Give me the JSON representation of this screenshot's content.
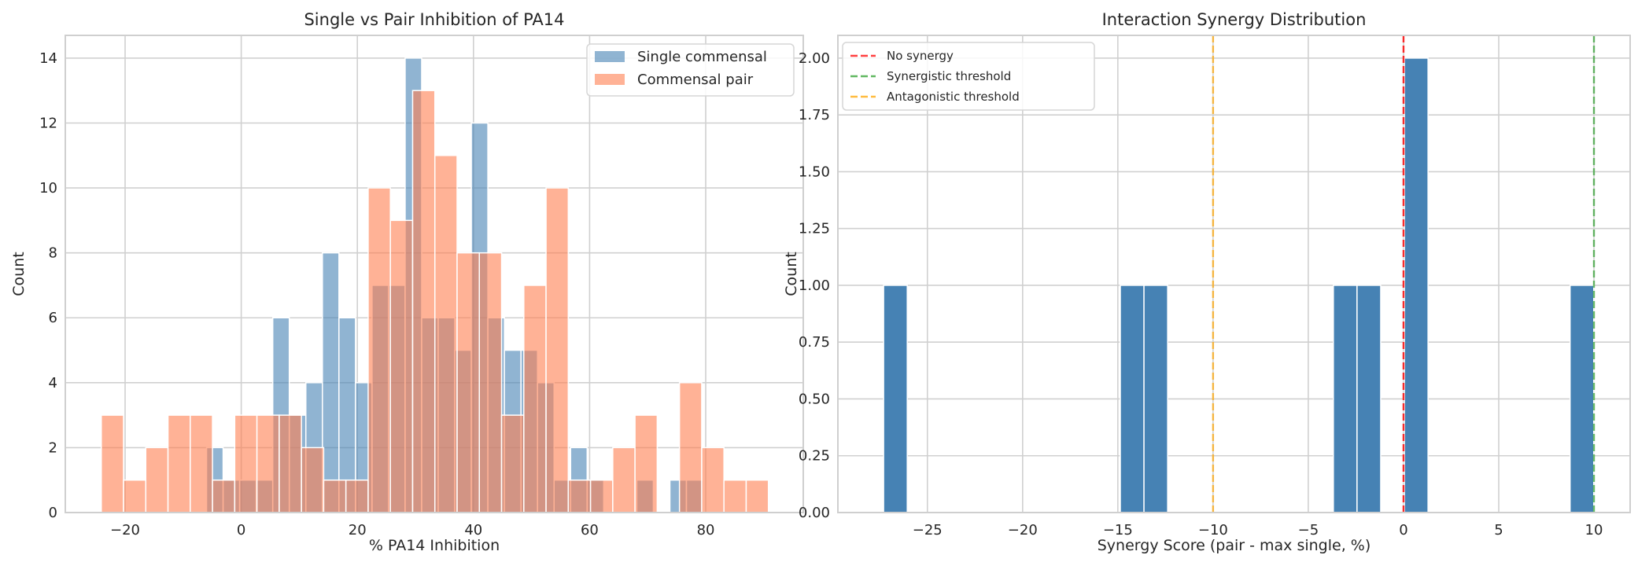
{
  "chart_data": [
    {
      "type": "bar",
      "subtype": "overlaid-histogram",
      "title": "Single vs Pair Inhibition of PA14",
      "xlabel": "% PA14 Inhibition",
      "ylabel": "Count",
      "xlim": [
        -30.3,
        96.8
      ],
      "ylim": [
        0,
        14.7
      ],
      "xticks": [
        -20,
        0,
        20,
        40,
        60,
        80
      ],
      "yticks": [
        0,
        2,
        4,
        6,
        8,
        10,
        12,
        14
      ],
      "grid": true,
      "legend_position": "top-right",
      "series": [
        {
          "name": "Single commensal",
          "color": "#4682b4",
          "bin_start": -5.97,
          "bin_width": 2.85,
          "counts": [
            2,
            1,
            1,
            1,
            6,
            3,
            4,
            8,
            6,
            4,
            7,
            7,
            14,
            6,
            6,
            5,
            12,
            6,
            5,
            5,
            4,
            1,
            2,
            1,
            0,
            0,
            1,
            0,
            1,
            1
          ]
        },
        {
          "name": "Commensal pair",
          "color": "#ff7f50",
          "bin_start": -24.1,
          "bin_width": 3.83,
          "counts": [
            3,
            1,
            2,
            3,
            3,
            1,
            3,
            3,
            3,
            2,
            1,
            1,
            10,
            9,
            13,
            11,
            8,
            8,
            3,
            7,
            10,
            1,
            1,
            2,
            3,
            0,
            4,
            2,
            1,
            1
          ]
        }
      ]
    },
    {
      "type": "bar",
      "subtype": "histogram",
      "title": "Interaction Synergy Distribution",
      "xlabel": "Synergy Score (pair - max single, %)",
      "ylabel": "Count",
      "xlim": [
        -29.7,
        11.9
      ],
      "ylim": [
        0,
        2.1
      ],
      "xticks": [
        -25,
        -20,
        -15,
        -10,
        -5,
        0,
        5,
        10
      ],
      "xtick_labels": [
        "−25",
        "−20",
        "−15",
        "−10",
        "−5",
        "0",
        "5",
        "10"
      ],
      "yticks": [
        0,
        0.25,
        0.5,
        0.75,
        1.0,
        1.25,
        1.5,
        1.75,
        2.0
      ],
      "ytick_labels": [
        "0.00",
        "0.25",
        "0.50",
        "0.75",
        "1.00",
        "1.25",
        "1.50",
        "1.75",
        "2.00"
      ],
      "grid": true,
      "legend_position": "top-left",
      "bar_color": "#4682b4",
      "bin_start": -27.3,
      "bin_width": 1.243,
      "counts": [
        1,
        0,
        0,
        0,
        0,
        0,
        0,
        0,
        0,
        0,
        1,
        1,
        0,
        0,
        0,
        0,
        0,
        0,
        0,
        1,
        1,
        0,
        2,
        0,
        0,
        0,
        0,
        0,
        0,
        1
      ],
      "reference_lines": [
        {
          "name": "No synergy",
          "x": 0,
          "color": "#ff0000"
        },
        {
          "name": "Synergistic threshold",
          "x": 10,
          "color": "#2ca02c"
        },
        {
          "name": "Antagonistic threshold",
          "x": -10,
          "color": "#ffa500"
        }
      ]
    }
  ],
  "left_xtick_labels": [
    "−20",
    "0",
    "20",
    "40",
    "60",
    "80"
  ]
}
